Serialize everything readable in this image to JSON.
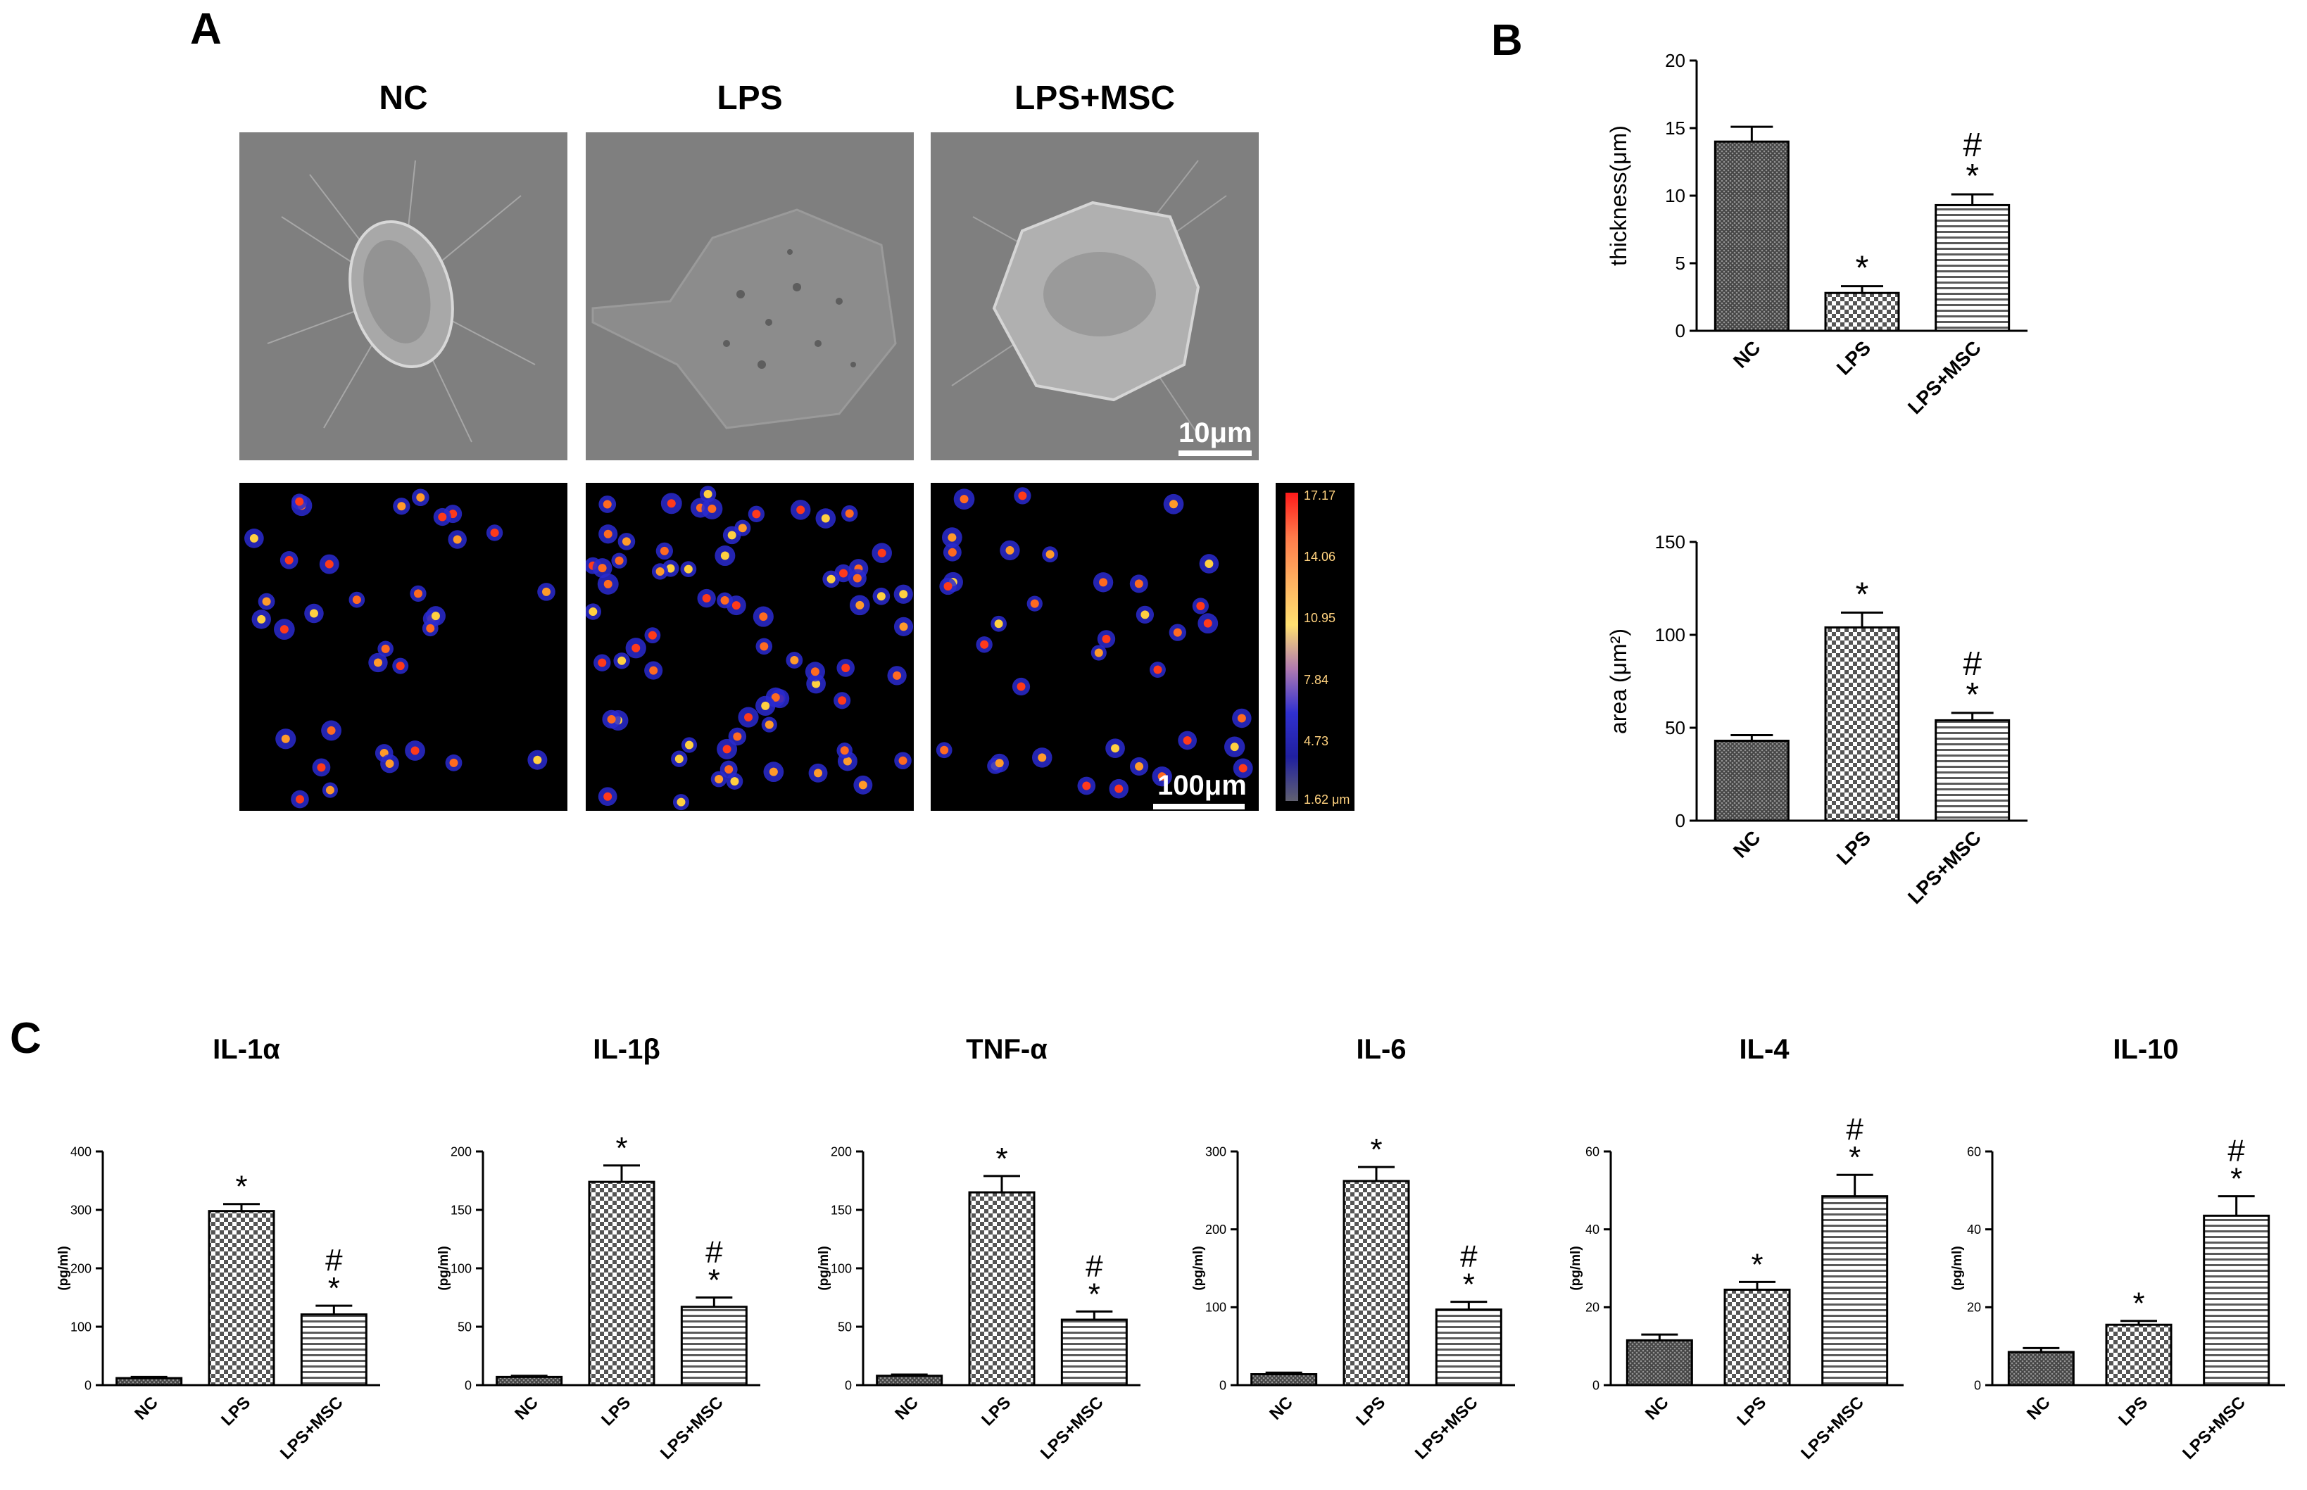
{
  "panel_labels": {
    "a": "A",
    "b": "B",
    "c": "C"
  },
  "images": {
    "columns": [
      "NC",
      "LPS",
      "LPS+MSC"
    ],
    "sem_scale_label": "10μm",
    "heat_scale_label": "100μm",
    "colorbar_ticks": [
      "17.17",
      "14.06",
      "10.95",
      "7.84",
      "4.73",
      "1.62 μm"
    ]
  },
  "colors": {
    "bar_fill": "#555555",
    "frame": "#000000",
    "heat_bg": "#000000"
  },
  "chart_data": [
    {
      "id": "thickness",
      "type": "bar",
      "title": "",
      "categories": [
        "NC",
        "LPS",
        "LPS+MSC"
      ],
      "values": [
        14.0,
        2.8,
        9.3
      ],
      "errors": [
        1.1,
        0.5,
        0.8
      ],
      "annotations": [
        [],
        [
          "*"
        ],
        [
          "#",
          "*"
        ]
      ],
      "patterns": [
        "dense",
        "checker",
        "lines"
      ],
      "ylabel": "thickness(μm)",
      "ylim": [
        0,
        20
      ],
      "yticks": [
        "0",
        "5",
        "10",
        "15",
        "20"
      ]
    },
    {
      "id": "area",
      "type": "bar",
      "title": "",
      "categories": [
        "NC",
        "LPS",
        "LPS+MSC"
      ],
      "values": [
        43,
        104,
        54
      ],
      "errors": [
        3,
        8,
        4
      ],
      "annotations": [
        [],
        [
          "*"
        ],
        [
          "#",
          "*"
        ]
      ],
      "patterns": [
        "dense",
        "checker",
        "lines"
      ],
      "ylabel": "area (μm²)",
      "ylim": [
        0,
        150
      ],
      "yticks": [
        "0",
        "50",
        "100",
        "150"
      ]
    },
    {
      "id": "il1a",
      "type": "bar",
      "title": "IL-1α",
      "categories": [
        "NC",
        "LPS",
        "LPS+MSC"
      ],
      "values": [
        12,
        298,
        121
      ],
      "errors": [
        2,
        12,
        15
      ],
      "annotations": [
        [],
        [
          "*"
        ],
        [
          "#",
          "*"
        ]
      ],
      "patterns": [
        "dense",
        "checker",
        "lines"
      ],
      "ylabel": "(pg/ml)",
      "ylim": [
        0,
        400
      ],
      "yticks": [
        "0",
        "100",
        "200",
        "300",
        "400"
      ]
    },
    {
      "id": "il1b",
      "type": "bar",
      "title": "IL-1β",
      "categories": [
        "NC",
        "LPS",
        "LPS+MSC"
      ],
      "values": [
        7,
        174,
        67
      ],
      "errors": [
        1,
        14,
        8
      ],
      "annotations": [
        [],
        [
          "*"
        ],
        [
          "#",
          "*"
        ]
      ],
      "patterns": [
        "dense",
        "checker",
        "lines"
      ],
      "ylabel": "(pg/ml)",
      "ylim": [
        0,
        200
      ],
      "yticks": [
        "0",
        "50",
        "100",
        "150",
        "200"
      ]
    },
    {
      "id": "tnfa",
      "type": "bar",
      "title": "TNF-α",
      "categories": [
        "NC",
        "LPS",
        "LPS+MSC"
      ],
      "values": [
        8,
        165,
        56
      ],
      "errors": [
        1,
        14,
        7
      ],
      "annotations": [
        [],
        [
          "*"
        ],
        [
          "#",
          "*"
        ]
      ],
      "patterns": [
        "dense",
        "checker",
        "lines"
      ],
      "ylabel": "(pg/ml)",
      "ylim": [
        0,
        200
      ],
      "yticks": [
        "0",
        "50",
        "100",
        "150",
        "200"
      ]
    },
    {
      "id": "il6",
      "type": "bar",
      "title": "IL-6",
      "categories": [
        "NC",
        "LPS",
        "LPS+MSC"
      ],
      "values": [
        14,
        262,
        97
      ],
      "errors": [
        2,
        18,
        10
      ],
      "annotations": [
        [],
        [
          "*"
        ],
        [
          "#",
          "*"
        ]
      ],
      "patterns": [
        "dense",
        "checker",
        "lines"
      ],
      "ylabel": "(pg/ml)",
      "ylim": [
        0,
        300
      ],
      "yticks": [
        "0",
        "100",
        "200",
        "300"
      ]
    },
    {
      "id": "il4",
      "type": "bar",
      "title": "IL-4",
      "categories": [
        "NC",
        "LPS",
        "LPS+MSC"
      ],
      "values": [
        11.5,
        24.5,
        48.5
      ],
      "errors": [
        1.5,
        2,
        5.5
      ],
      "annotations": [
        [],
        [
          "*"
        ],
        [
          "#",
          "*"
        ]
      ],
      "patterns": [
        "dense",
        "checker",
        "lines"
      ],
      "ylabel": "(pg/ml)",
      "ylim": [
        0,
        60
      ],
      "yticks": [
        "0",
        "20",
        "40",
        "60"
      ]
    },
    {
      "id": "il10",
      "type": "bar",
      "title": "IL-10",
      "categories": [
        "NC",
        "LPS",
        "LPS+MSC"
      ],
      "values": [
        8.5,
        15.5,
        43.5
      ],
      "errors": [
        1,
        1,
        5
      ],
      "annotations": [
        [],
        [
          "*"
        ],
        [
          "#",
          "*"
        ]
      ],
      "patterns": [
        "dense",
        "checker",
        "lines"
      ],
      "ylabel": "(pg/ml)",
      "ylim": [
        0,
        60
      ],
      "yticks": [
        "0",
        "20",
        "40",
        "60"
      ]
    }
  ]
}
